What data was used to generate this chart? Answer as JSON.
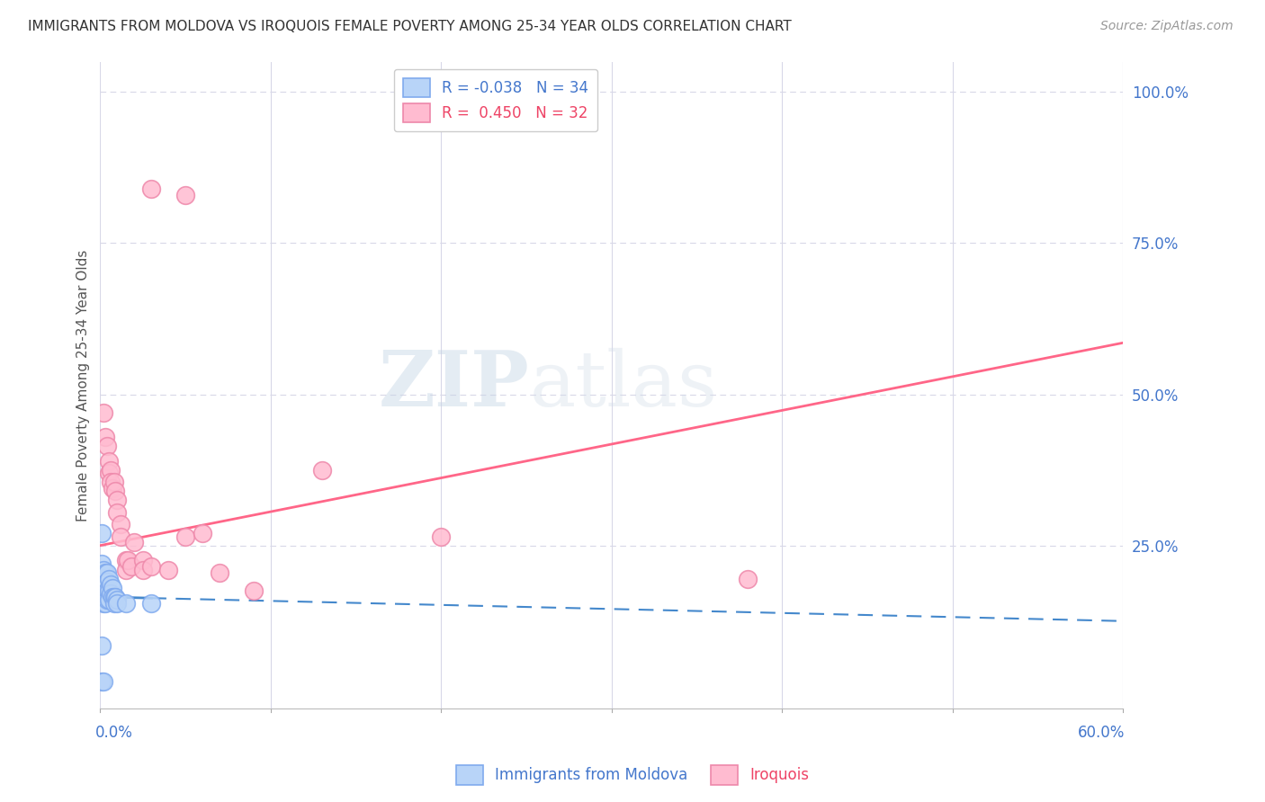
{
  "title": "IMMIGRANTS FROM MOLDOVA VS IROQUOIS FEMALE POVERTY AMONG 25-34 YEAR OLDS CORRELATION CHART",
  "source": "Source: ZipAtlas.com",
  "ylabel": "Female Poverty Among 25-34 Year Olds",
  "ytick_labels": [
    "25.0%",
    "50.0%",
    "75.0%",
    "100.0%"
  ],
  "ytick_values": [
    0.25,
    0.5,
    0.75,
    1.0
  ],
  "xlim": [
    0,
    0.6
  ],
  "ylim": [
    -0.02,
    1.05
  ],
  "series1_label": "Immigrants from Moldova",
  "series1_color": "#b8d4f8",
  "series1_edge_color": "#80aaee",
  "series1_R": "-0.038",
  "series1_N": "34",
  "series1_line_color": "#4488cc",
  "series2_label": "Iroquois",
  "series2_color": "#ffbbd0",
  "series2_edge_color": "#ee88aa",
  "series2_R": "0.450",
  "series2_N": "32",
  "series2_line_color": "#ff6688",
  "watermark_zip": "ZIP",
  "watermark_atlas": "atlas",
  "background_color": "#ffffff",
  "grid_color": "#d8d8e8",
  "series1_x": [
    0.001,
    0.001,
    0.001,
    0.001,
    0.002,
    0.002,
    0.002,
    0.002,
    0.002,
    0.003,
    0.003,
    0.003,
    0.003,
    0.004,
    0.004,
    0.004,
    0.004,
    0.005,
    0.005,
    0.005,
    0.006,
    0.006,
    0.007,
    0.007,
    0.008,
    0.008,
    0.009,
    0.01,
    0.01,
    0.015,
    0.001,
    0.002,
    0.03,
    0.001
  ],
  "series1_y": [
    0.27,
    0.22,
    0.195,
    0.175,
    0.21,
    0.195,
    0.18,
    0.165,
    0.155,
    0.205,
    0.185,
    0.17,
    0.155,
    0.205,
    0.19,
    0.175,
    0.16,
    0.195,
    0.175,
    0.16,
    0.185,
    0.17,
    0.18,
    0.165,
    0.165,
    0.155,
    0.165,
    0.16,
    0.155,
    0.155,
    0.025,
    0.025,
    0.155,
    0.085
  ],
  "series2_x": [
    0.002,
    0.003,
    0.004,
    0.005,
    0.005,
    0.006,
    0.006,
    0.007,
    0.008,
    0.009,
    0.01,
    0.01,
    0.012,
    0.012,
    0.015,
    0.015,
    0.016,
    0.018,
    0.02,
    0.025,
    0.025,
    0.03,
    0.04,
    0.05,
    0.06,
    0.07,
    0.09,
    0.13,
    0.2,
    0.38,
    0.03,
    0.05
  ],
  "series2_y": [
    0.47,
    0.43,
    0.415,
    0.39,
    0.37,
    0.375,
    0.355,
    0.345,
    0.355,
    0.34,
    0.325,
    0.305,
    0.285,
    0.265,
    0.225,
    0.21,
    0.225,
    0.215,
    0.255,
    0.225,
    0.21,
    0.215,
    0.21,
    0.265,
    0.27,
    0.205,
    0.175,
    0.375,
    0.265,
    0.195,
    0.84,
    0.83
  ],
  "trendline2_x0": 0.0,
  "trendline2_y0": 0.25,
  "trendline2_x1": 0.6,
  "trendline2_y1": 0.585,
  "trendline1_x0": 0.0,
  "trendline1_y0": 0.165,
  "trendline1_x1": 0.6,
  "trendline1_y1": 0.125
}
